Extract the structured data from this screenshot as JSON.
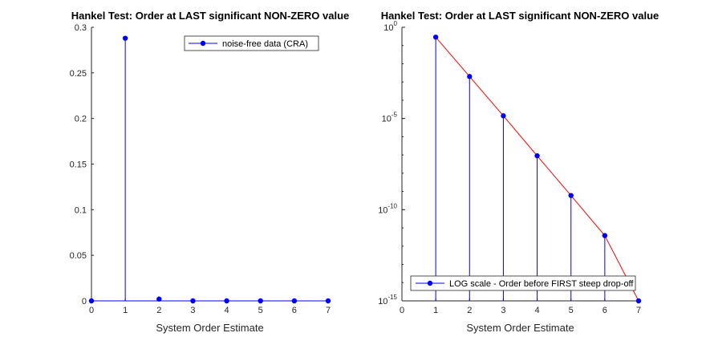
{
  "chart_data": [
    {
      "type": "stem",
      "title": "Hankel Test: Order at LAST significant NON-ZERO value",
      "xlabel": "System Order Estimate",
      "ylabel": "",
      "xlim": [
        0,
        7
      ],
      "ylim": [
        0,
        0.3
      ],
      "xticks": [
        "0",
        "1",
        "2",
        "3",
        "4",
        "5",
        "6",
        "7"
      ],
      "yticks": [
        "0",
        "0.05",
        "0.1",
        "0.15",
        "0.2",
        "0.25",
        "0.3"
      ],
      "grid": false,
      "legend_position": "top-right",
      "series": [
        {
          "name": "noise-free data (CRA)",
          "color": "#0000ff",
          "x": [
            0,
            1,
            2,
            3,
            4,
            5,
            6,
            7
          ],
          "y": [
            0,
            0.288,
            0.002,
            0,
            0,
            0,
            0,
            0
          ]
        }
      ]
    },
    {
      "type": "stem",
      "title": "Hankel Test: Order at LAST significant NON-ZERO value",
      "xlabel": "System Order Estimate",
      "ylabel": "",
      "yscale": "log",
      "xlim": [
        0,
        7
      ],
      "ylim": [
        1e-15,
        1
      ],
      "xticks": [
        "0",
        "1",
        "2",
        "3",
        "4",
        "5",
        "6",
        "7"
      ],
      "yticks": [
        {
          "base": "10",
          "exp": "0"
        },
        {
          "base": "10",
          "exp": "-5"
        },
        {
          "base": "10",
          "exp": "-10"
        },
        {
          "base": "10",
          "exp": "-15"
        }
      ],
      "grid": false,
      "legend_position": "bottom",
      "series": [
        {
          "name": "LOG scale - Order before FIRST steep drop-off",
          "color": "#0000ff",
          "trend_color": "#ff0000",
          "x": [
            1,
            2,
            3,
            4,
            5,
            6,
            7
          ],
          "y": [
            0.288,
            0.002,
            1.4e-05,
            9e-08,
            6e-10,
            3.8e-12,
            1e-15
          ]
        }
      ]
    }
  ]
}
